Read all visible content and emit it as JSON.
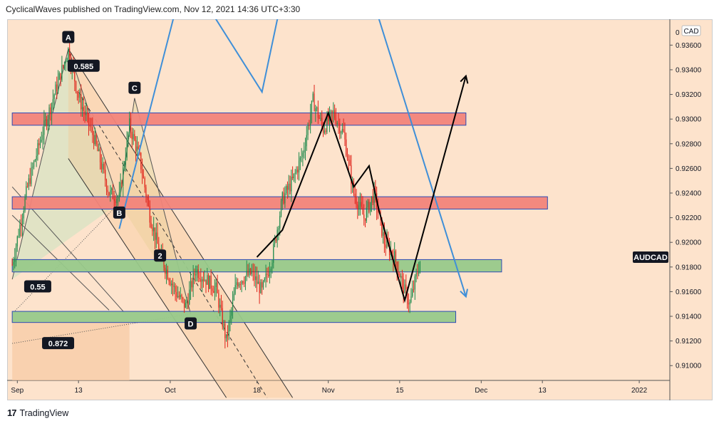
{
  "header": {
    "published_text": "CyclicalWaves published on TradingView.com, Nov 12, 2021 14:36 UTC+3:30"
  },
  "footer": {
    "logo_text": "17",
    "brand_text": "TradingView"
  },
  "colors": {
    "background": "#fde3cc",
    "candle_up": "#1f8a4c",
    "candle_down": "#e0251b",
    "resistance_zone": "#f2847a",
    "support_zone": "#98c98a",
    "projection_blue": "#3f8fd8",
    "projection_black": "#000000"
  },
  "chart_data": {
    "type": "candlestick",
    "symbol_label": "AUDCAD",
    "currency_label": "CAD",
    "ylim": [
      0.9088,
      0.9381
    ],
    "y_ticks": [
      0.91,
      0.912,
      0.914,
      0.916,
      0.918,
      0.92,
      0.922,
      0.924,
      0.926,
      0.928,
      0.93,
      0.932,
      0.934,
      0.936
    ],
    "y_tick_labels": [
      "0.91000",
      "0.91200",
      "0.91400",
      "0.91600",
      "0.91800",
      "0.92000",
      "0.92200",
      "0.92400",
      "0.92600",
      "0.92800",
      "0.93000",
      "0.93200",
      "0.93400",
      "0.93600"
    ],
    "y_top_label": "0",
    "x_ticks": [
      {
        "label": "Sep",
        "date": "2021-09-01"
      },
      {
        "label": "13",
        "date": "2021-09-13"
      },
      {
        "label": "Oct",
        "date": "2021-10-01"
      },
      {
        "label": "18",
        "date": "2021-10-18"
      },
      {
        "label": "Nov",
        "date": "2021-11-01"
      },
      {
        "label": "15",
        "date": "2021-11-15"
      },
      {
        "label": "Dec",
        "date": "2021-12-01"
      },
      {
        "label": "13",
        "date": "2021-12-13"
      },
      {
        "label": "2022",
        "date": "2022-01-01"
      }
    ],
    "last_price": 0.9188,
    "price_path": [
      [
        "2021-08-31",
        0.9182
      ],
      [
        "2021-09-03",
        0.9245
      ],
      [
        "2021-09-06",
        0.929
      ],
      [
        "2021-09-09",
        0.933
      ],
      [
        "2021-09-11",
        0.9356
      ],
      [
        "2021-09-13",
        0.9318
      ],
      [
        "2021-09-16",
        0.9285
      ],
      [
        "2021-09-19",
        0.924
      ],
      [
        "2021-09-21",
        0.9236
      ],
      [
        "2021-09-23",
        0.9295
      ],
      [
        "2021-09-25",
        0.9268
      ],
      [
        "2021-09-27",
        0.9222
      ],
      [
        "2021-09-29",
        0.919
      ],
      [
        "2021-10-02",
        0.916
      ],
      [
        "2021-10-04",
        0.9148
      ],
      [
        "2021-10-06",
        0.9178
      ],
      [
        "2021-10-08",
        0.917
      ],
      [
        "2021-10-10",
        0.9162
      ],
      [
        "2021-10-12",
        0.912
      ],
      [
        "2021-10-14",
        0.9168
      ],
      [
        "2021-10-17",
        0.9175
      ],
      [
        "2021-10-19",
        0.916
      ],
      [
        "2021-10-21",
        0.9188
      ],
      [
        "2021-10-23",
        0.9235
      ],
      [
        "2021-10-25",
        0.925
      ],
      [
        "2021-10-27",
        0.9272
      ],
      [
        "2021-10-29",
        0.9315
      ],
      [
        "2021-10-31",
        0.9292
      ],
      [
        "2021-11-02",
        0.9305
      ],
      [
        "2021-11-04",
        0.9288
      ],
      [
        "2021-11-06",
        0.924
      ],
      [
        "2021-11-08",
        0.922
      ],
      [
        "2021-11-10",
        0.924
      ],
      [
        "2021-11-12",
        0.92
      ],
      [
        "2021-11-14",
        0.9188
      ],
      [
        "2021-11-16",
        0.916
      ],
      [
        "2021-11-17",
        0.915
      ],
      [
        "2021-11-19",
        0.9185
      ]
    ],
    "zones": [
      {
        "kind": "resistance",
        "low": 0.9295,
        "high": 0.9305,
        "from": "2021-08-31",
        "to": "2021-11-28"
      },
      {
        "kind": "resistance",
        "low": 0.9227,
        "high": 0.9237,
        "from": "2021-08-31",
        "to": "2021-12-14"
      },
      {
        "kind": "support",
        "low": 0.9176,
        "high": 0.9186,
        "from": "2021-08-31",
        "to": "2021-12-05"
      },
      {
        "kind": "support",
        "low": 0.9135,
        "high": 0.9144,
        "from": "2021-08-31",
        "to": "2021-11-26"
      }
    ],
    "pattern_points": [
      {
        "label": "A",
        "date": "2021-09-11",
        "price": 0.9357
      },
      {
        "label": "B",
        "date": "2021-09-21",
        "price": 0.9232
      },
      {
        "label": "C",
        "date": "2021-09-24",
        "price": 0.9317
      },
      {
        "label": "D",
        "date": "2021-10-05",
        "price": 0.9142
      }
    ],
    "ratio_labels": [
      {
        "text": "0.585",
        "date": "2021-09-14",
        "price": 0.9343
      },
      {
        "text": "0.55",
        "date": "2021-09-05",
        "price": 0.9164
      },
      {
        "text": "0.872",
        "date": "2021-09-09",
        "price": 0.9118
      }
    ],
    "wave_labels": [
      {
        "text": "2",
        "date": "2021-09-29",
        "price": 0.9189
      }
    ],
    "projections": [
      {
        "color": "blue",
        "points": [
          [
            "2021-09-21",
            0.9211
          ],
          [
            "2021-10-04",
            0.942
          ],
          [
            "2021-10-19",
            0.9322
          ],
          [
            "2021-10-24",
            0.942
          ]
        ]
      },
      {
        "color": "blue",
        "points": [
          [
            "2021-11-08",
            0.942
          ],
          [
            "2021-11-28",
            0.9156
          ]
        ]
      },
      {
        "color": "black",
        "points": [
          [
            "2021-10-18",
            0.9188
          ],
          [
            "2021-10-23",
            0.921
          ],
          [
            "2021-11-01",
            0.9305
          ],
          [
            "2021-11-06",
            0.9245
          ],
          [
            "2021-11-09",
            0.9262
          ],
          [
            "2021-11-11",
            0.9225
          ],
          [
            "2021-11-16",
            0.9153
          ],
          [
            "2021-11-28",
            0.9335
          ]
        ]
      }
    ]
  }
}
